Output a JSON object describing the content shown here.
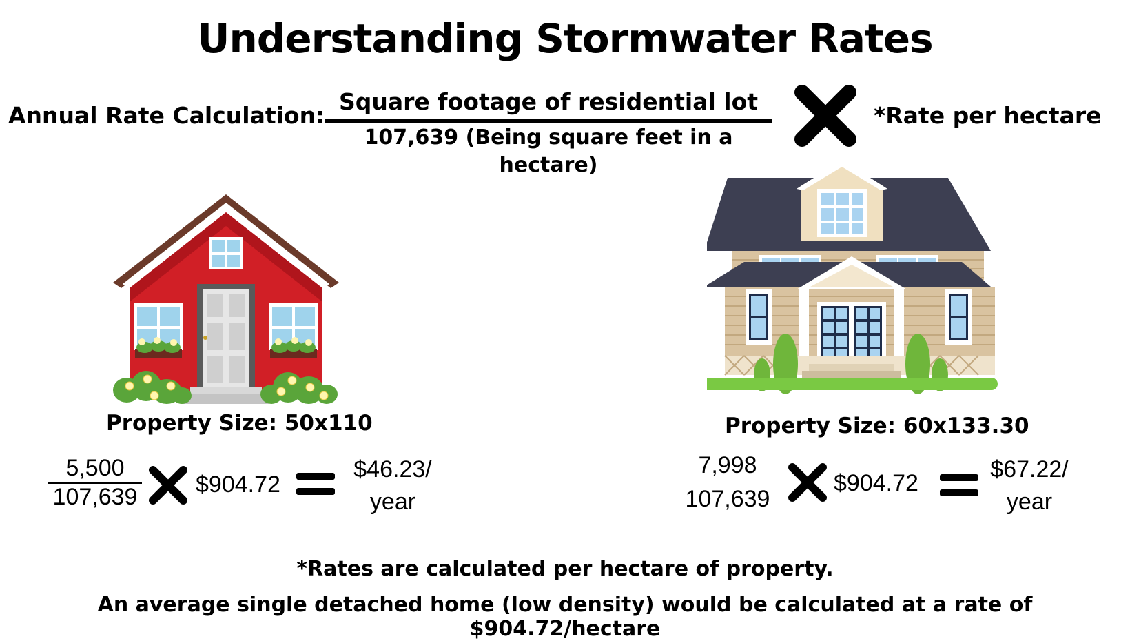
{
  "title": "Understanding Stormwater Rates",
  "formula": {
    "label": "Annual Rate Calculation:",
    "numerator": "Square footage of residential lot",
    "denominator": "107,639 (Being square feet in a hectare)",
    "rate": "*Rate per hectare"
  },
  "left_example": {
    "property_size": "Property Size: 50x110",
    "numerator": "5,500",
    "denominator": "107,639",
    "rate": "$904.72",
    "result_line1": "$46.23/",
    "result_line2": "year"
  },
  "right_example": {
    "property_size": "Property Size: 60x133.30",
    "numerator": "7,998",
    "denominator": "107,639",
    "rate": "$904.72",
    "result_line1": "$67.22/",
    "result_line2": "year"
  },
  "footnotes": {
    "line1": "*Rates are calculated per hectare of property.",
    "line2": "An average single detached home (low density) would be calculated at a rate of $904.72/hectare"
  },
  "icons": {
    "multiply": "multiply-icon",
    "equals": "equals-icon",
    "red_house": "red-house-illustration",
    "beige_house": "beige-house-illustration"
  },
  "colors": {
    "red_house_wall": "#d11f26",
    "roof_dark": "#3d3f52",
    "siding": "#d9c3a0",
    "lawn": "#7ac943"
  }
}
